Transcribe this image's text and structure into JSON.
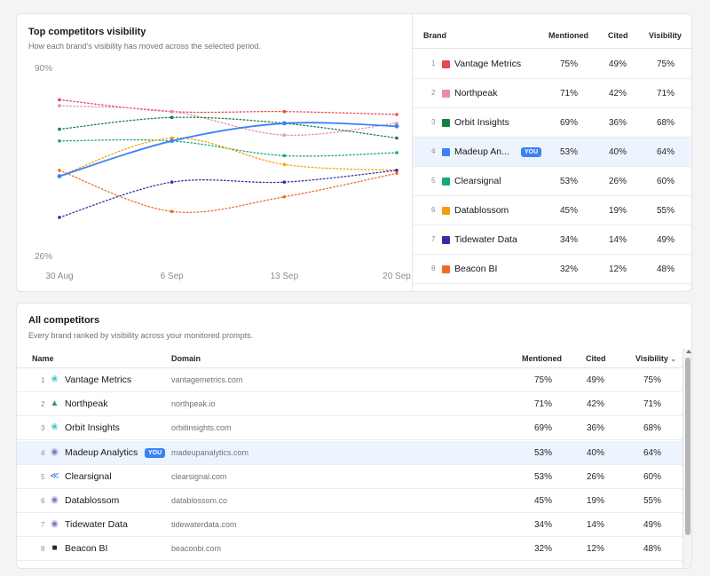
{
  "top_card": {
    "title": "Top competitors visibility",
    "subtitle": "How each brand's visibility has moved across the selected period."
  },
  "side_table": {
    "headers": {
      "brand": "Brand",
      "mentioned": "Mentioned",
      "cited": "Cited",
      "visibility": "Visibility"
    },
    "rows": [
      {
        "rank": "1",
        "name": "Vantage Metrics",
        "color": "#e5484d",
        "mentioned": "75%",
        "cited": "49%",
        "visibility": "75%"
      },
      {
        "rank": "2",
        "name": "Northpeak",
        "color": "#e88ab5",
        "mentioned": "71%",
        "cited": "42%",
        "visibility": "71%"
      },
      {
        "rank": "3",
        "name": "Orbit Insights",
        "color": "#15803d",
        "mentioned": "69%",
        "cited": "36%",
        "visibility": "68%"
      },
      {
        "rank": "4",
        "name": "Madeup An...",
        "color": "#3b82f6",
        "mentioned": "53%",
        "cited": "40%",
        "visibility": "64%",
        "you": "YOU"
      },
      {
        "rank": "5",
        "name": "Clearsignal",
        "color": "#16a97a",
        "mentioned": "53%",
        "cited": "26%",
        "visibility": "60%"
      },
      {
        "rank": "6",
        "name": "Datablossom",
        "color": "#f59e0b",
        "mentioned": "45%",
        "cited": "19%",
        "visibility": "55%"
      },
      {
        "rank": "7",
        "name": "Tidewater Data",
        "color": "#3730a3",
        "mentioned": "34%",
        "cited": "14%",
        "visibility": "49%"
      },
      {
        "rank": "8",
        "name": "Beacon BI",
        "color": "#f06a27",
        "mentioned": "32%",
        "cited": "12%",
        "visibility": "48%"
      }
    ]
  },
  "chart_data": {
    "type": "line",
    "x": [
      "30 Aug",
      "6 Sep",
      "13 Sep",
      "20 Sep"
    ],
    "ylim": [
      26,
      90
    ],
    "y_ticks": [
      "90%",
      "26%"
    ],
    "series": [
      {
        "name": "Vantage Metrics",
        "color": "#e5484d",
        "dashed": true,
        "values": [
          79,
          75,
          75,
          74
        ]
      },
      {
        "name": "Northpeak",
        "color": "#e88ab5",
        "dashed": true,
        "values": [
          77,
          75,
          67,
          71
        ]
      },
      {
        "name": "Orbit Insights",
        "color": "#15803d",
        "dashed": true,
        "values": [
          69,
          73,
          71,
          66
        ]
      },
      {
        "name": "Madeup Analytics",
        "color": "#3b82f6",
        "dashed": false,
        "values": [
          53,
          65,
          71,
          70
        ]
      },
      {
        "name": "Clearsignal",
        "color": "#16a97a",
        "dashed": true,
        "values": [
          65,
          65,
          60,
          61
        ]
      },
      {
        "name": "Datablossom",
        "color": "#f59e0b",
        "dashed": true,
        "values": [
          53,
          66,
          57,
          55
        ]
      },
      {
        "name": "Tidewater Data",
        "color": "#3730a3",
        "dashed": true,
        "values": [
          39,
          51,
          51,
          55
        ]
      },
      {
        "name": "Beacon BI",
        "color": "#f06a27",
        "dashed": true,
        "values": [
          55,
          41,
          46,
          54
        ]
      }
    ]
  },
  "bottom_card": {
    "title": "All competitors",
    "subtitle": "Every brand ranked by visibility across your monitored prompts.",
    "headers": {
      "name": "Name",
      "domain": "Domain",
      "mentioned": "Mentioned",
      "cited": "Cited",
      "visibility": "Visibility"
    },
    "rows": [
      {
        "rank": "1",
        "name": "Vantage Metrics",
        "icon": "vantage-logo-icon",
        "glyph": "❀",
        "glyph_color": "#3cc6c6",
        "domain": "vantagemetrics.com",
        "mentioned": "75%",
        "cited": "49%",
        "visibility": "75%"
      },
      {
        "rank": "2",
        "name": "Northpeak",
        "icon": "northpeak-logo-icon",
        "glyph": "▲",
        "glyph_color": "#3d8b7a",
        "domain": "northpeak.io",
        "mentioned": "71%",
        "cited": "42%",
        "visibility": "71%"
      },
      {
        "rank": "3",
        "name": "Orbit Insights",
        "icon": "orbit-logo-icon",
        "glyph": "❀",
        "glyph_color": "#3cc6c6",
        "domain": "orbitinsights.com",
        "mentioned": "69%",
        "cited": "36%",
        "visibility": "68%"
      },
      {
        "rank": "4",
        "name": "Madeup Analytics",
        "icon": "madeup-logo-icon",
        "glyph": "◉",
        "glyph_color": "#7c7fc7",
        "domain": "madeupanalytics.com",
        "mentioned": "53%",
        "cited": "40%",
        "visibility": "64%",
        "you": "YOU"
      },
      {
        "rank": "5",
        "name": "Clearsignal",
        "icon": "clearsignal-logo-icon",
        "glyph": "≪",
        "glyph_color": "#2f6fd6",
        "domain": "clearsignal.com",
        "mentioned": "53%",
        "cited": "26%",
        "visibility": "60%"
      },
      {
        "rank": "6",
        "name": "Datablossom",
        "icon": "datablossom-logo-icon",
        "glyph": "◉",
        "glyph_color": "#7c7fc7",
        "domain": "datablossom.co",
        "mentioned": "45%",
        "cited": "19%",
        "visibility": "55%"
      },
      {
        "rank": "7",
        "name": "Tidewater Data",
        "icon": "tidewater-logo-icon",
        "glyph": "◉",
        "glyph_color": "#7c7fc7",
        "domain": "tidewaterdata.com",
        "mentioned": "34%",
        "cited": "14%",
        "visibility": "49%"
      },
      {
        "rank": "8",
        "name": "Beacon BI",
        "icon": "beacon-logo-icon",
        "glyph": "■",
        "glyph_color": "#27272a",
        "domain": "beaconbi.com",
        "mentioned": "32%",
        "cited": "12%",
        "visibility": "48%"
      }
    ]
  }
}
